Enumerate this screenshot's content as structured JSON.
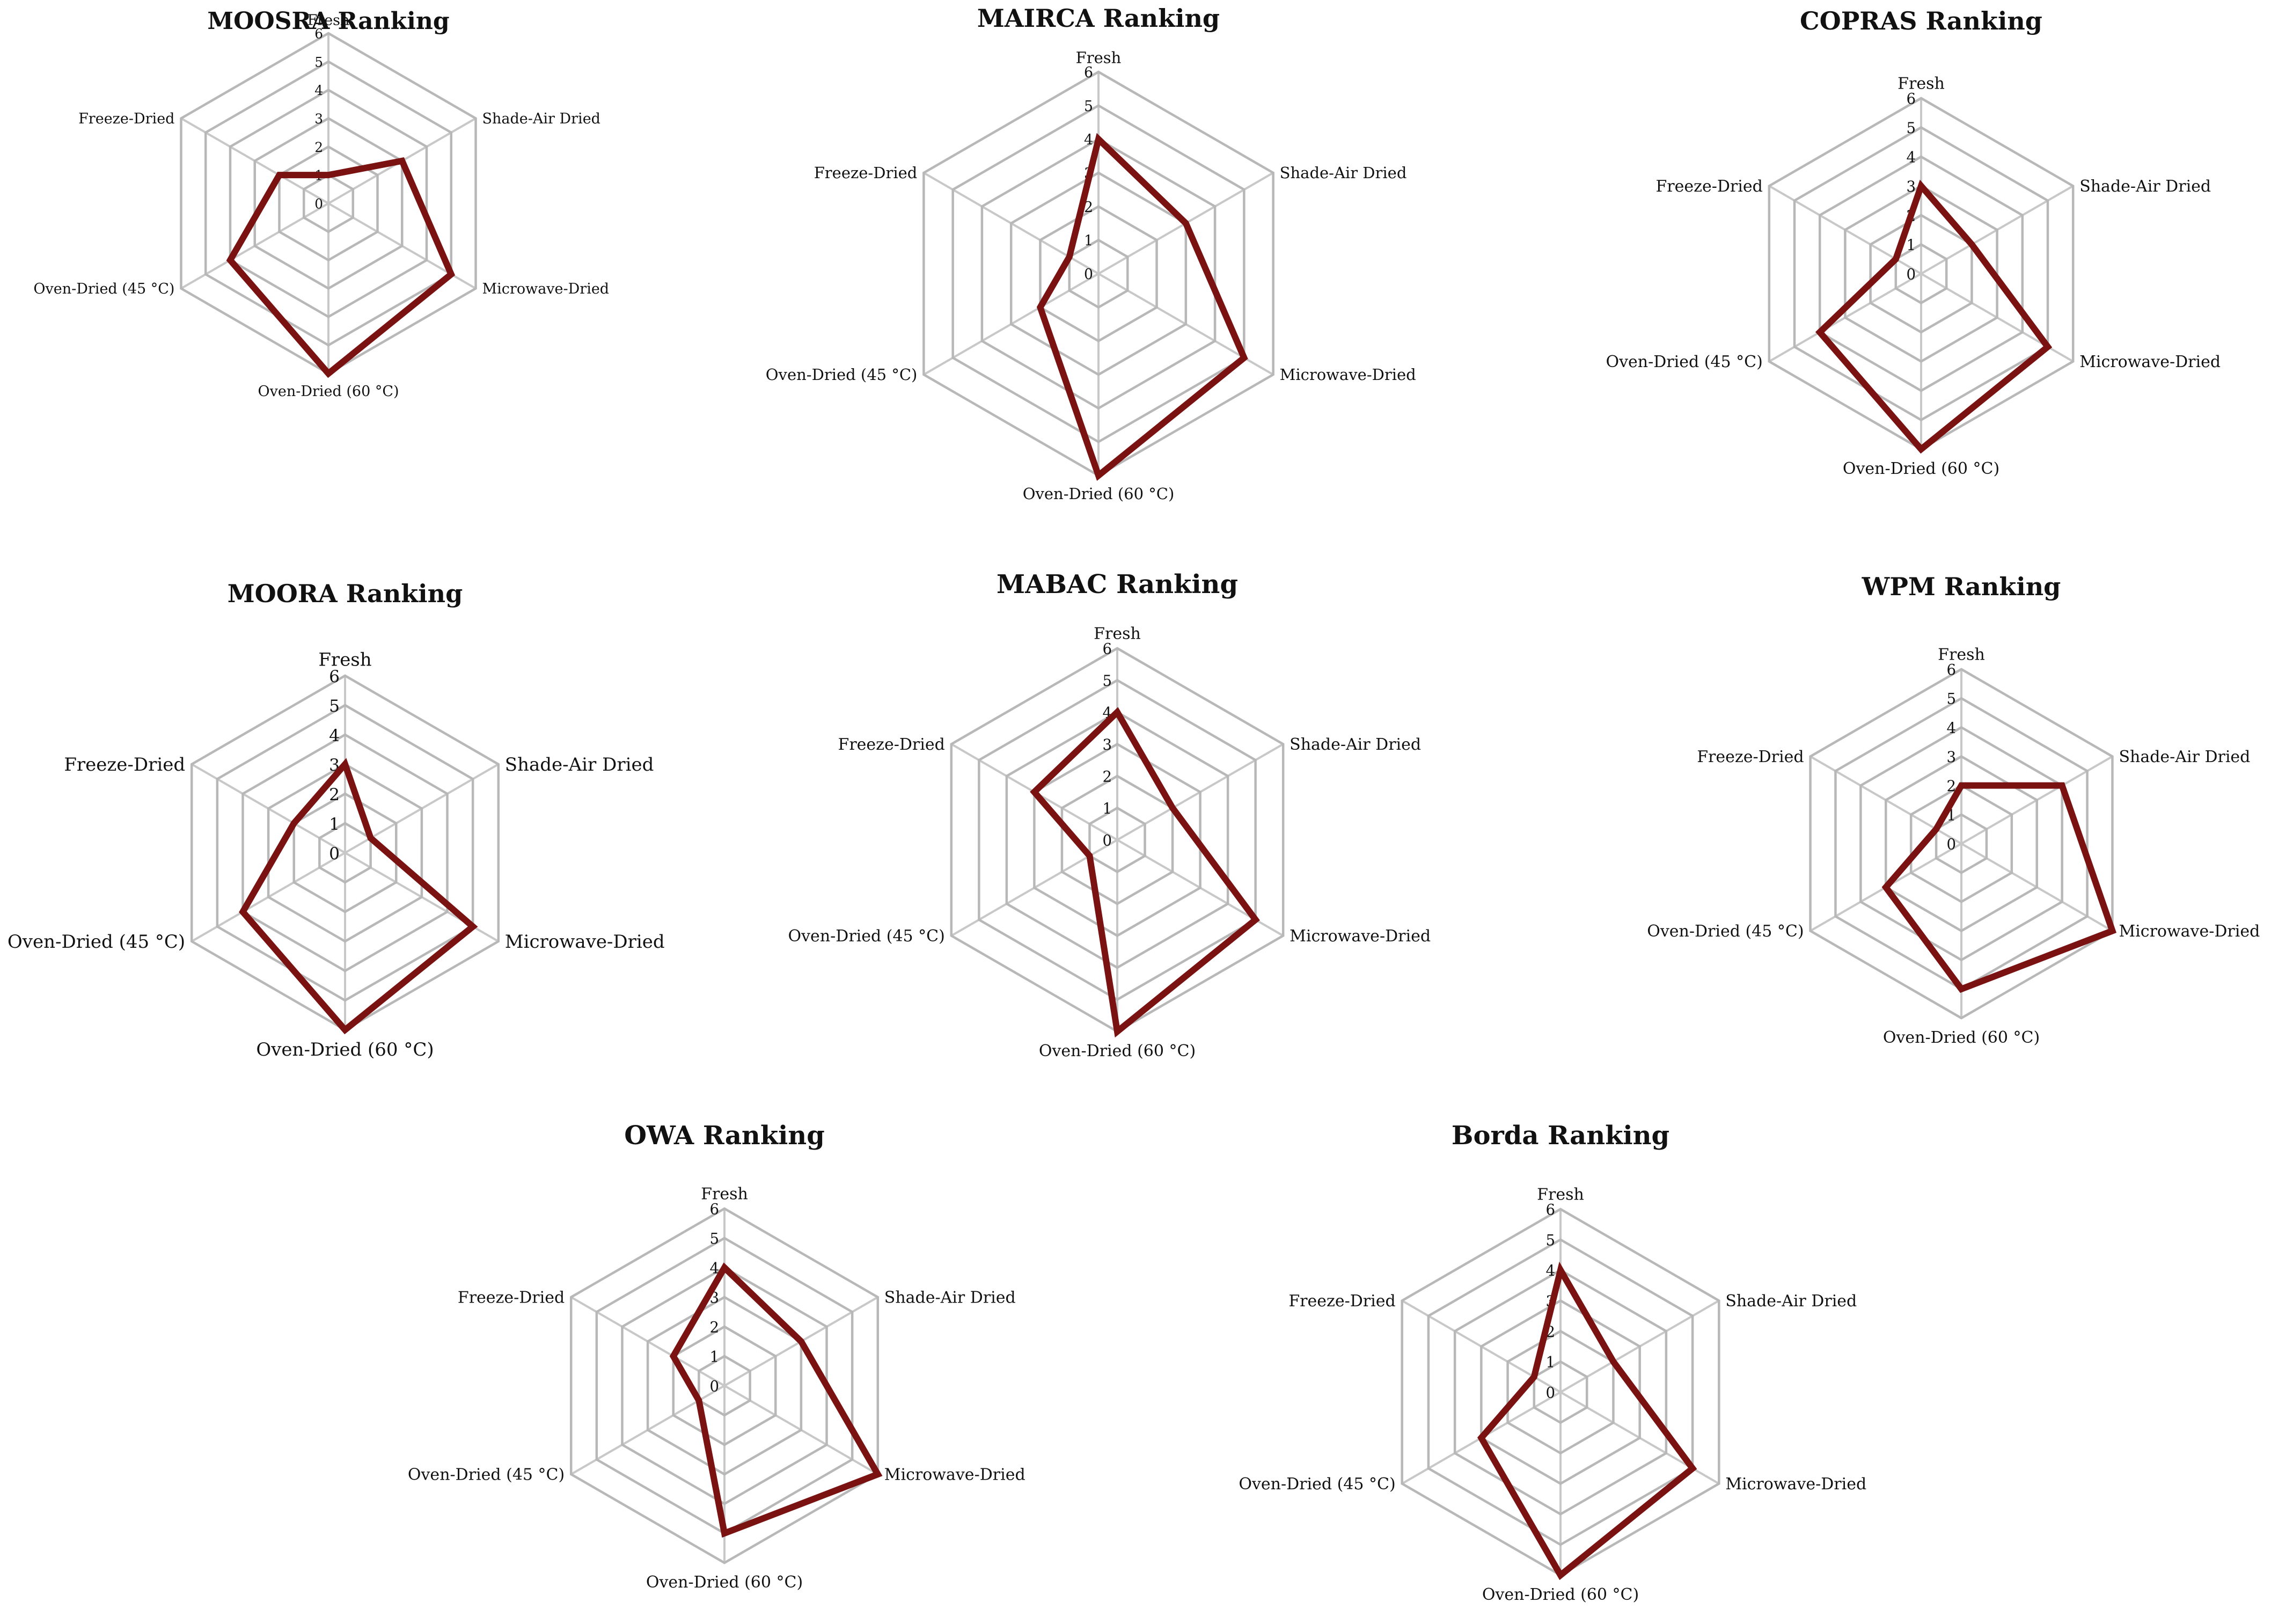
{
  "figure": {
    "categories": [
      "Fresh",
      "Shade-Air Dried",
      "Microwave-Dried",
      "Oven-Dried (60 °C)",
      "Oven-Dried (45 °C)",
      "Freeze-Dried"
    ],
    "series_color": "#7a1212",
    "grid_color": "#b8b8b8"
  },
  "chart_data": [
    {
      "type": "radar",
      "title": "MOOSRA Ranking",
      "categories": [
        "Fresh",
        "Shade-Air Dried",
        "Microwave-Dried",
        "Oven-Dried (60 °C)",
        "Oven-Dried (45 °C)",
        "Freeze-Dried"
      ],
      "values": [
        1,
        3,
        5,
        6,
        4,
        2
      ],
      "ticks": [
        0,
        1,
        2,
        3,
        4,
        5,
        6
      ],
      "rlim": [
        0,
        6
      ]
    },
    {
      "type": "radar",
      "title": "MAIRCA Ranking",
      "categories": [
        "Fresh",
        "Shade-Air Dried",
        "Microwave-Dried",
        "Oven-Dried (60 °C)",
        "Oven-Dried (45 °C)",
        "Freeze-Dried"
      ],
      "values": [
        4,
        3,
        5,
        6,
        2,
        1
      ],
      "ticks": [
        0,
        1,
        2,
        3,
        4,
        5,
        6
      ],
      "rlim": [
        0,
        6
      ]
    },
    {
      "type": "radar",
      "title": "COPRAS Ranking",
      "categories": [
        "Fresh",
        "Shade-Air Dried",
        "Microwave-Dried",
        "Oven-Dried (60 °C)",
        "Oven-Dried (45 °C)",
        "Freeze-Dried"
      ],
      "values": [
        3,
        2,
        5,
        6,
        4,
        1
      ],
      "ticks": [
        0,
        1,
        2,
        3,
        4,
        5,
        6
      ],
      "rlim": [
        0,
        6
      ]
    },
    {
      "type": "radar",
      "title": "MOORA Ranking",
      "categories": [
        "Fresh",
        "Shade-Air Dried",
        "Microwave-Dried",
        "Oven-Dried (60 °C)",
        "Oven-Dried (45 °C)",
        "Freeze-Dried"
      ],
      "values": [
        3,
        1,
        5,
        6,
        4,
        2
      ],
      "ticks": [
        0,
        1,
        2,
        3,
        4,
        5,
        6
      ],
      "rlim": [
        0,
        6
      ]
    },
    {
      "type": "radar",
      "title": "MABAC Ranking",
      "categories": [
        "Fresh",
        "Shade-Air Dried",
        "Microwave-Dried",
        "Oven-Dried (60 °C)",
        "Oven-Dried (45 °C)",
        "Freeze-Dried"
      ],
      "values": [
        4,
        2,
        5,
        6,
        1,
        3
      ],
      "ticks": [
        0,
        1,
        2,
        3,
        4,
        5,
        6
      ],
      "rlim": [
        0,
        6
      ]
    },
    {
      "type": "radar",
      "title": "WPM Ranking",
      "categories": [
        "Fresh",
        "Shade-Air Dried",
        "Microwave-Dried",
        "Oven-Dried (60 °C)",
        "Oven-Dried (45 °C)",
        "Freeze-Dried"
      ],
      "values": [
        2,
        4,
        6,
        5,
        3,
        1
      ],
      "ticks": [
        0,
        1,
        2,
        3,
        4,
        5,
        6
      ],
      "rlim": [
        0,
        6
      ]
    },
    {
      "type": "radar",
      "title": "OWA Ranking",
      "categories": [
        "Fresh",
        "Shade-Air Dried",
        "Microwave-Dried",
        "Oven-Dried (60 °C)",
        "Oven-Dried (45 °C)",
        "Freeze-Dried"
      ],
      "values": [
        4,
        3,
        6,
        5,
        1,
        2
      ],
      "ticks": [
        0,
        1,
        2,
        3,
        4,
        5,
        6
      ],
      "rlim": [
        0,
        6
      ]
    },
    {
      "type": "radar",
      "title": "Borda  Ranking",
      "categories": [
        "Fresh",
        "Shade-Air Dried",
        "Microwave-Dried",
        "Oven-Dried (60 °C)",
        "Oven-Dried (45 °C)",
        "Freeze-Dried"
      ],
      "values": [
        4,
        2,
        5,
        6,
        3,
        1
      ],
      "ticks": [
        0,
        1,
        2,
        3,
        4,
        5,
        6
      ],
      "rlim": [
        0,
        6
      ]
    }
  ]
}
